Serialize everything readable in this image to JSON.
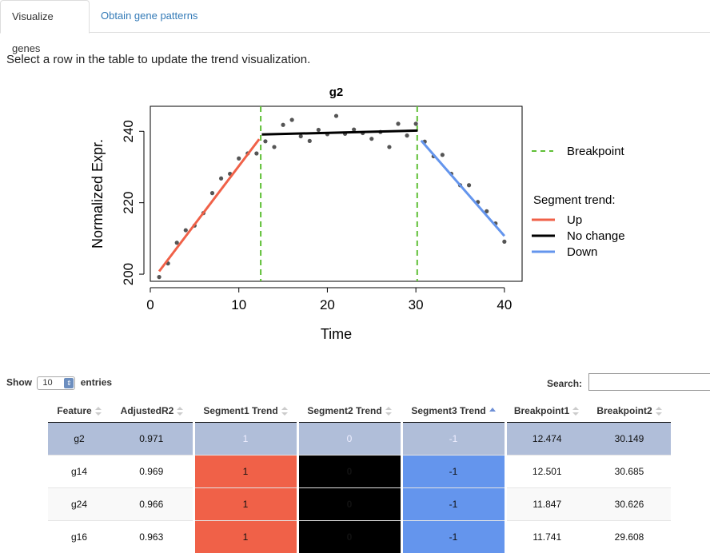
{
  "tabs": [
    {
      "label": "Visualize genes",
      "active": true
    },
    {
      "label": "Obtain gene patterns",
      "active": false
    }
  ],
  "instruction": "Select a row in the table to update the trend visualization.",
  "chart_data": {
    "type": "scatter",
    "title": "g2",
    "xlabel": "Time",
    "ylabel": "Normalized Expr.",
    "xlim": [
      0,
      42
    ],
    "ylim": [
      198,
      247
    ],
    "xticks": [
      0,
      10,
      20,
      30,
      40
    ],
    "yticks": [
      200,
      220,
      240
    ],
    "points": {
      "x": [
        1,
        2,
        3,
        4,
        5,
        6,
        7,
        8,
        9,
        10,
        11,
        12,
        13,
        14,
        15,
        16,
        17,
        18,
        19,
        20,
        21,
        22,
        23,
        24,
        25,
        26,
        27,
        28,
        29,
        30,
        31,
        32,
        33,
        34,
        35,
        36,
        37,
        38,
        39,
        40
      ],
      "y": [
        199.2,
        203,
        208.8,
        212.3,
        213.6,
        217.1,
        222.7,
        226.8,
        228.1,
        232.4,
        233.8,
        233.8,
        237.2,
        235.6,
        241.8,
        243.2,
        238.6,
        237.3,
        240.4,
        239.2,
        244.3,
        239.3,
        240.5,
        239.5,
        237.9,
        239.8,
        235.6,
        242.1,
        238.8,
        242.1,
        237.1,
        233,
        233.4,
        228.1,
        224.9,
        224.9,
        220.2,
        217.6,
        214.2,
        209.1
      ]
    },
    "segments": [
      {
        "x": [
          1,
          12.3
        ],
        "y": [
          200.8,
          237.8
        ],
        "trend": "Up",
        "color": "#f06148"
      },
      {
        "x": [
          12.6,
          30.2
        ],
        "y": [
          239.1,
          240.2
        ],
        "trend": "No change",
        "color": "#000000"
      },
      {
        "x": [
          30.6,
          40
        ],
        "y": [
          237.4,
          210.7
        ],
        "trend": "Down",
        "color": "#6495ed"
      }
    ],
    "breakpoints": [
      12.474,
      30.149
    ],
    "breakpoint_color": "#5fbf36",
    "legend": {
      "breakpoint_label": "Breakpoint",
      "segment_title": "Segment trend:",
      "items": [
        {
          "label": "Up",
          "color": "#f06148"
        },
        {
          "label": "No change",
          "color": "#000000"
        },
        {
          "label": "Down",
          "color": "#6495ed"
        }
      ],
      "placement": "right"
    }
  },
  "table": {
    "show_label": "Show",
    "length_value": "10",
    "entries_label": "entries",
    "search_label": "Search:",
    "search_value": "",
    "columns": [
      "Feature",
      "AdjustedR2",
      "Segment1 Trend",
      "Segment2 Trend",
      "Segment3 Trend",
      "Breakpoint1",
      "Breakpoint2"
    ],
    "rows": [
      {
        "feature": "g2",
        "r2": "0.971",
        "s1": "1",
        "s2": "0",
        "s3": "-1",
        "bp1": "12.474",
        "bp2": "30.149",
        "selected": true
      },
      {
        "feature": "g14",
        "r2": "0.969",
        "s1": "1",
        "s2": "0",
        "s3": "-1",
        "bp1": "12.501",
        "bp2": "30.685"
      },
      {
        "feature": "g24",
        "r2": "0.966",
        "s1": "1",
        "s2": "0",
        "s3": "-1",
        "bp1": "11.847",
        "bp2": "30.626"
      },
      {
        "feature": "g16",
        "r2": "0.963",
        "s1": "1",
        "s2": "0",
        "s3": "-1",
        "bp1": "11.741",
        "bp2": "29.608"
      }
    ]
  }
}
